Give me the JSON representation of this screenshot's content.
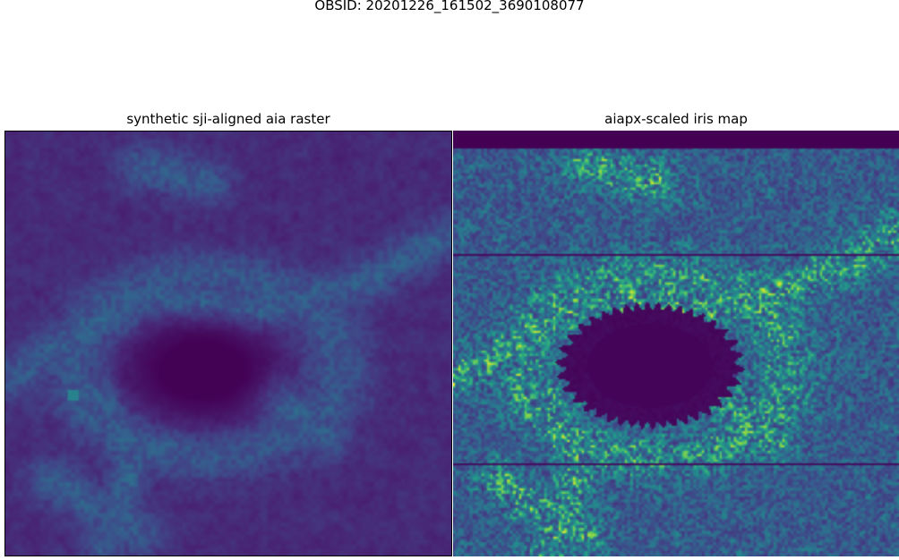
{
  "figure": {
    "suptitle": "OBSID: 20201226_161502_3690108077"
  },
  "panels": [
    {
      "title": "synthetic sji-aligned aia raster",
      "colormap": "viridis",
      "content": "dark umbra with faint bright network"
    },
    {
      "title": "aiapx-scaled iris map",
      "colormap": "viridis",
      "content": "dark umbra with bright speckled network and horizontal slit lines"
    }
  ],
  "colors": {
    "viridis_dark": "#440154",
    "viridis_mid": "#21918c",
    "viridis_bright": "#fde725"
  }
}
